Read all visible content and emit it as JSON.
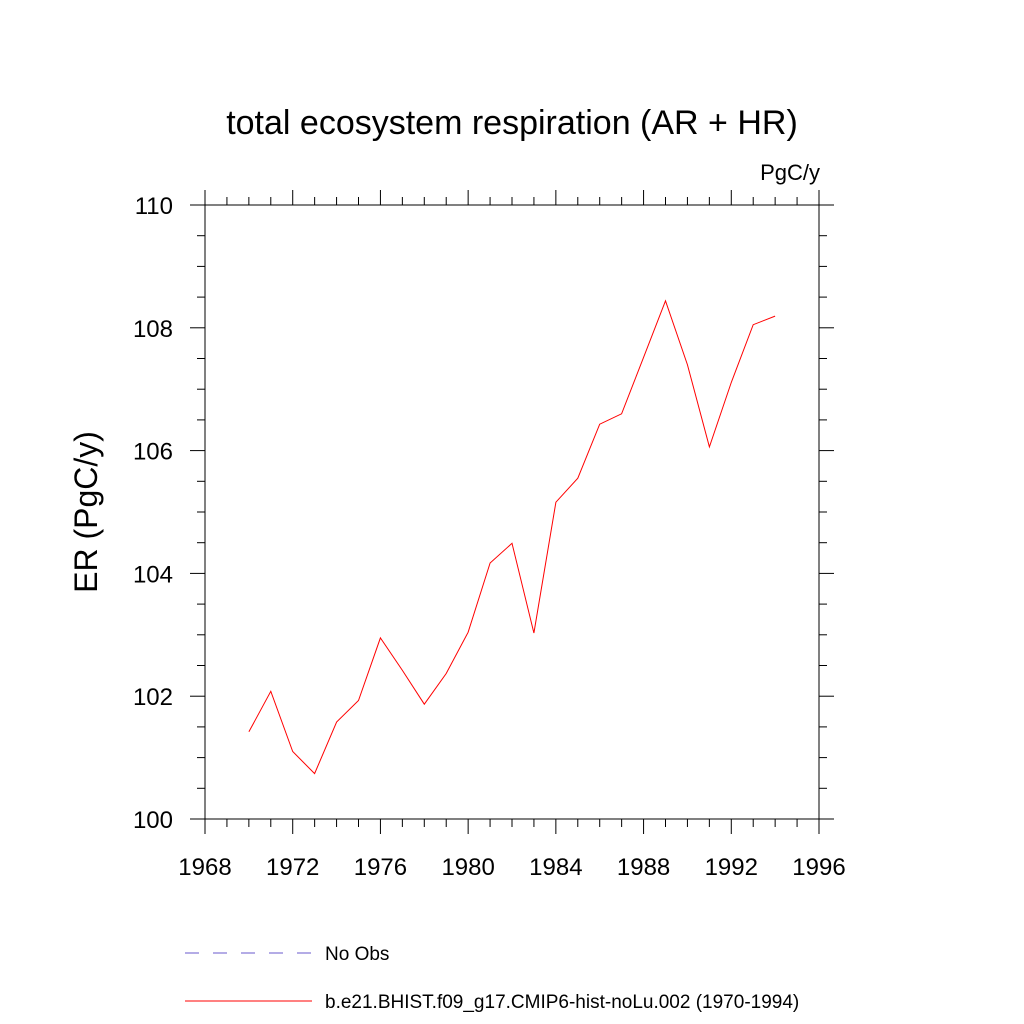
{
  "chart_data": {
    "type": "line",
    "title": "total ecosystem respiration (AR + HR)",
    "units_label": "PgC/y",
    "xlabel": "",
    "ylabel": "ER  (PgC/y)",
    "xlim": [
      1968,
      1996
    ],
    "ylim": [
      100,
      110
    ],
    "x_ticks": [
      1968,
      1972,
      1976,
      1980,
      1984,
      1988,
      1992,
      1996
    ],
    "y_ticks": [
      100,
      102,
      104,
      106,
      108,
      110
    ],
    "grid": false,
    "legend_position": "bottom",
    "series": [
      {
        "name": "No Obs",
        "color": "#6a5acd",
        "dash": "dashed",
        "x": [],
        "y": []
      },
      {
        "name": "b.e21.BHIST.f09_g17.CMIP6-hist-noLu.002 (1970-1994)",
        "color": "#ff0000",
        "dash": "solid",
        "x": [
          1970,
          1971,
          1972,
          1973,
          1974,
          1975,
          1976,
          1977,
          1978,
          1979,
          1980,
          1981,
          1982,
          1983,
          1984,
          1985,
          1986,
          1987,
          1988,
          1989,
          1990,
          1991,
          1992,
          1993,
          1994
        ],
        "y": [
          101.42,
          102.08,
          101.1,
          100.74,
          101.58,
          101.93,
          102.95,
          102.42,
          101.87,
          102.37,
          103.04,
          104.17,
          104.49,
          103.03,
          105.16,
          105.55,
          106.43,
          106.6,
          107.52,
          108.44,
          107.4,
          106.06,
          107.11,
          108.05,
          108.19
        ]
      }
    ]
  }
}
